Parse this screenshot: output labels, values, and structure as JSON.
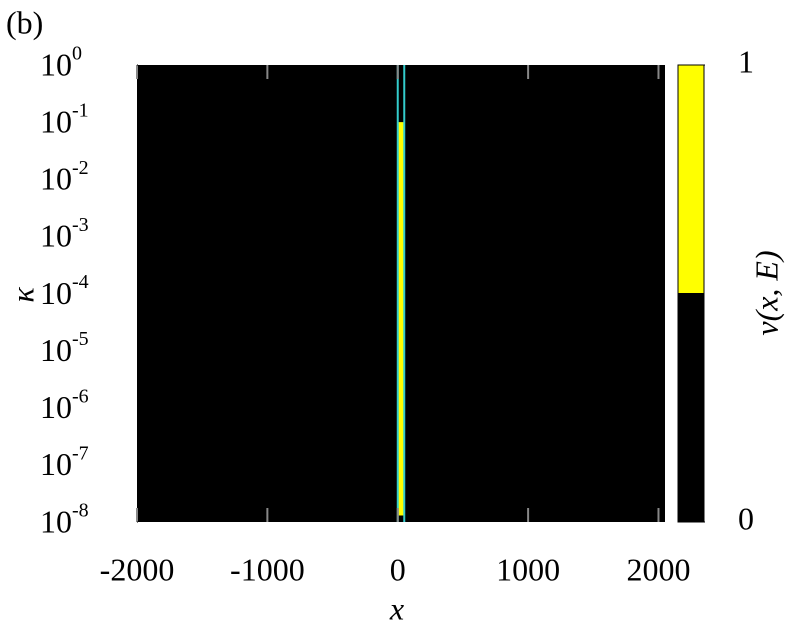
{
  "chart_data": {
    "type": "heatmap",
    "panel_label": "(b)",
    "xlabel": "x",
    "ylabel": "κ",
    "xlim": [
      -2000,
      2050
    ],
    "xticks": [
      -2000,
      -1000,
      0,
      1000,
      2000
    ],
    "ylim": [
      1e-08,
      1
    ],
    "ylog": true,
    "yticks": [
      {
        "value": 1,
        "label": "10",
        "power": "0"
      },
      {
        "value": 0.1,
        "label": "10",
        "power": "-1"
      },
      {
        "value": 0.01,
        "label": "10",
        "power": "-2"
      },
      {
        "value": 0.001,
        "label": "10",
        "power": "-3"
      },
      {
        "value": 0.0001,
        "label": "10",
        "power": "-4"
      },
      {
        "value": 1e-05,
        "label": "10",
        "power": "-5"
      },
      {
        "value": 1e-06,
        "label": "10",
        "power": "-6"
      },
      {
        "value": 1e-07,
        "label": "10",
        "power": "-7"
      },
      {
        "value": 1e-08,
        "label": "10",
        "power": "-8"
      }
    ],
    "background": 0,
    "cells": [
      {
        "x": [
          0,
          50
        ],
        "y": [
          1.3e-08,
          0.1
        ],
        "value": 1
      }
    ],
    "vlines": [
      0,
      50
    ],
    "vline_color": "#33cccc",
    "colors": [
      "#000000",
      "#ffff00"
    ],
    "clim": [
      0,
      1
    ],
    "cticks": [
      0,
      1
    ],
    "clabel": "ν(x, E)"
  }
}
